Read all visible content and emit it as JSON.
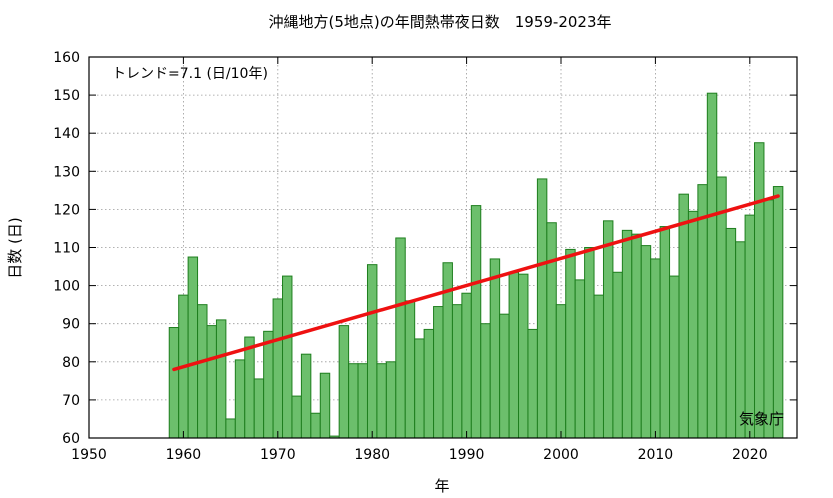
{
  "chart_data": {
    "type": "bar",
    "title": "沖縄地方(5地点)の年間熱帯夜日数　1959-2023年",
    "xlabel": "年",
    "ylabel": "日数 (日)",
    "xlim": [
      1950,
      2025
    ],
    "ylim": [
      60,
      160
    ],
    "xticks": [
      1950,
      1960,
      1970,
      1980,
      1990,
      2000,
      2010,
      2020
    ],
    "yticks": [
      60,
      70,
      80,
      90,
      100,
      110,
      120,
      130,
      140,
      150,
      160
    ],
    "grid": true,
    "annotation": "トレンド=7.1 (日/10年)",
    "source": "気象庁",
    "colors": {
      "bar_fill": "#6cbf6c",
      "bar_stroke": "#1e7e1e",
      "trend": "#ee1111"
    },
    "series": [
      {
        "name": "",
        "x": [
          1959,
          1960,
          1961,
          1962,
          1963,
          1964,
          1965,
          1966,
          1967,
          1968,
          1969,
          1970,
          1971,
          1972,
          1973,
          1974,
          1975,
          1976,
          1977,
          1978,
          1979,
          1980,
          1981,
          1982,
          1983,
          1984,
          1985,
          1986,
          1987,
          1988,
          1989,
          1990,
          1991,
          1992,
          1993,
          1994,
          1995,
          1996,
          1997,
          1998,
          1999,
          2000,
          2001,
          2002,
          2003,
          2004,
          2005,
          2006,
          2007,
          2008,
          2009,
          2010,
          2011,
          2012,
          2013,
          2014,
          2015,
          2016,
          2017,
          2018,
          2019,
          2020,
          2021,
          2022,
          2023
        ],
        "values": [
          89,
          97.5,
          107.5,
          95,
          89.5,
          91,
          65,
          80.5,
          86.5,
          75.5,
          88,
          96.5,
          102.5,
          71,
          82,
          66.5,
          77,
          60.5,
          89.5,
          79.5,
          79.5,
          105.5,
          79.5,
          80,
          112.5,
          96,
          86,
          88.5,
          94.5,
          106,
          95,
          98,
          121,
          90,
          107,
          92.5,
          103.5,
          103,
          88.5,
          128,
          116.5,
          95,
          109.5,
          101.5,
          110,
          97.5,
          117,
          103.5,
          114.5,
          113.5,
          110.5,
          107,
          115.5,
          102.5,
          124,
          119.5,
          126.5,
          150.5,
          128.5,
          115,
          111.5,
          118.5,
          137.5,
          122.5,
          126
        ]
      }
    ],
    "trend": {
      "x": [
        1959,
        2023
      ],
      "y": [
        78,
        123.5
      ]
    }
  }
}
